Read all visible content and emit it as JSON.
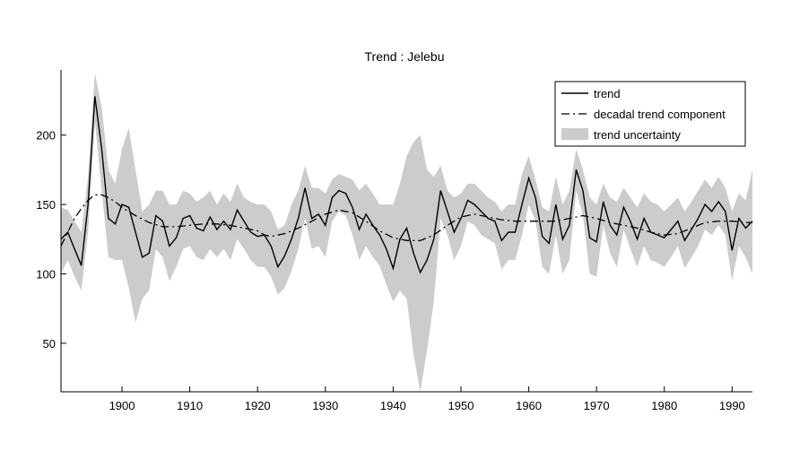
{
  "chart_data": {
    "type": "line",
    "title": "Trend : Jelebu",
    "xlabel": "",
    "ylabel": "",
    "xlim": [
      1891,
      1993
    ],
    "ylim": [
      15,
      247
    ],
    "x_ticks": [
      1900,
      1910,
      1920,
      1930,
      1940,
      1950,
      1960,
      1970,
      1980,
      1990
    ],
    "y_ticks": [
      50,
      100,
      150,
      200
    ],
    "x_tick_labels": [
      "1900",
      "1910",
      "1920",
      "1930",
      "1940",
      "1950",
      "1960",
      "1970",
      "1980",
      "1990"
    ],
    "y_tick_labels": [
      "50",
      "100",
      "150",
      "200"
    ],
    "grid": false,
    "legend_position": "top-right",
    "legend": [
      "trend",
      "decadal trend component",
      "trend uncertainty"
    ],
    "series": [
      {
        "name": "trend",
        "style": "solid",
        "color": "#000000",
        "x": [
          1891,
          1892,
          1893,
          1894,
          1895,
          1896,
          1897,
          1898,
          1899,
          1900,
          1901,
          1902,
          1903,
          1904,
          1905,
          1906,
          1907,
          1908,
          1909,
          1910,
          1911,
          1912,
          1913,
          1914,
          1915,
          1916,
          1917,
          1918,
          1919,
          1920,
          1921,
          1922,
          1923,
          1924,
          1925,
          1926,
          1927,
          1928,
          1929,
          1930,
          1931,
          1932,
          1933,
          1934,
          1935,
          1936,
          1937,
          1938,
          1939,
          1940,
          1941,
          1942,
          1943,
          1944,
          1945,
          1946,
          1947,
          1948,
          1949,
          1950,
          1951,
          1952,
          1953,
          1954,
          1955,
          1956,
          1957,
          1958,
          1959,
          1960,
          1961,
          1962,
          1963,
          1964,
          1965,
          1966,
          1967,
          1968,
          1969,
          1970,
          1971,
          1972,
          1973,
          1974,
          1975,
          1976,
          1977,
          1978,
          1979,
          1980,
          1981,
          1982,
          1983,
          1984,
          1985,
          1986,
          1987,
          1988,
          1989,
          1990,
          1991,
          1992,
          1993
        ],
        "values": [
          125,
          130,
          118,
          106,
          150,
          228,
          190,
          140,
          136,
          150,
          148,
          130,
          112,
          115,
          142,
          138,
          120,
          126,
          140,
          142,
          133,
          131,
          141,
          132,
          138,
          132,
          146,
          138,
          130,
          127,
          128,
          120,
          105,
          113,
          125,
          140,
          162,
          140,
          143,
          135,
          155,
          160,
          158,
          148,
          132,
          143,
          135,
          128,
          118,
          104,
          125,
          133,
          115,
          101,
          110,
          125,
          160,
          145,
          130,
          140,
          153,
          150,
          145,
          140,
          138,
          124,
          130,
          130,
          150,
          169,
          155,
          127,
          122,
          150,
          125,
          135,
          175,
          160,
          126,
          123,
          152,
          135,
          128,
          148,
          138,
          125,
          140,
          130,
          128,
          126,
          132,
          138,
          124,
          132,
          140,
          150,
          145,
          152,
          145,
          117,
          140,
          133,
          138
        ]
      },
      {
        "name": "decadal trend component",
        "style": "dashdot",
        "color": "#000000",
        "x": [
          1891,
          1892,
          1893,
          1894,
          1895,
          1896,
          1897,
          1898,
          1899,
          1900,
          1902,
          1904,
          1906,
          1908,
          1910,
          1912,
          1914,
          1916,
          1918,
          1920,
          1921,
          1922,
          1924,
          1926,
          1928,
          1930,
          1932,
          1934,
          1936,
          1938,
          1940,
          1942,
          1944,
          1946,
          1948,
          1950,
          1952,
          1954,
          1956,
          1958,
          1960,
          1962,
          1964,
          1966,
          1968,
          1970,
          1972,
          1974,
          1976,
          1978,
          1980,
          1982,
          1984,
          1986,
          1988,
          1990,
          1992,
          1993
        ],
        "values": [
          120,
          130,
          140,
          147,
          153,
          157,
          157,
          155,
          152,
          148,
          142,
          137,
          134,
          134,
          135,
          136,
          136,
          135,
          133,
          131,
          128,
          127,
          129,
          133,
          138,
          143,
          146,
          144,
          138,
          131,
          126,
          124,
          124,
          128,
          135,
          141,
          143,
          141,
          139,
          138,
          138,
          138,
          138,
          140,
          142,
          140,
          137,
          135,
          133,
          130,
          128,
          129,
          133,
          137,
          138,
          138,
          137,
          137
        ]
      }
    ],
    "uncertainty_band": {
      "name": "trend uncertainty",
      "color": "#cccccc",
      "x": [
        1891,
        1892,
        1893,
        1894,
        1895,
        1896,
        1897,
        1898,
        1899,
        1900,
        1901,
        1902,
        1903,
        1904,
        1905,
        1906,
        1907,
        1908,
        1909,
        1910,
        1911,
        1912,
        1913,
        1914,
        1915,
        1916,
        1917,
        1918,
        1919,
        1920,
        1921,
        1922,
        1923,
        1924,
        1925,
        1926,
        1927,
        1928,
        1929,
        1930,
        1931,
        1932,
        1933,
        1934,
        1935,
        1936,
        1937,
        1938,
        1939,
        1940,
        1941,
        1942,
        1943,
        1944,
        1945,
        1946,
        1947,
        1948,
        1949,
        1950,
        1951,
        1952,
        1953,
        1954,
        1955,
        1956,
        1957,
        1958,
        1959,
        1960,
        1961,
        1962,
        1963,
        1964,
        1965,
        1966,
        1967,
        1968,
        1969,
        1970,
        1971,
        1972,
        1973,
        1974,
        1975,
        1976,
        1977,
        1978,
        1979,
        1980,
        1981,
        1982,
        1983,
        1984,
        1985,
        1986,
        1987,
        1988,
        1989,
        1990,
        1991,
        1992,
        1993
      ],
      "upper": [
        148,
        146,
        138,
        130,
        170,
        245,
        220,
        175,
        165,
        190,
        205,
        175,
        145,
        150,
        160,
        160,
        150,
        150,
        160,
        158,
        152,
        155,
        160,
        150,
        158,
        152,
        165,
        155,
        152,
        150,
        150,
        145,
        132,
        135,
        150,
        160,
        178,
        162,
        162,
        158,
        168,
        172,
        170,
        168,
        160,
        165,
        158,
        150,
        150,
        150,
        165,
        185,
        195,
        200,
        175,
        170,
        178,
        160,
        155,
        158,
        165,
        165,
        160,
        155,
        152,
        145,
        150,
        150,
        172,
        185,
        168,
        148,
        145,
        170,
        150,
        160,
        190,
        175,
        155,
        150,
        165,
        155,
        152,
        162,
        155,
        148,
        158,
        152,
        150,
        145,
        150,
        155,
        145,
        152,
        160,
        168,
        162,
        170,
        162,
        145,
        158,
        153,
        175
      ],
      "lower": [
        100,
        110,
        98,
        88,
        130,
        210,
        160,
        112,
        110,
        110,
        90,
        65,
        82,
        88,
        118,
        112,
        95,
        105,
        118,
        120,
        112,
        110,
        118,
        112,
        118,
        110,
        125,
        118,
        110,
        105,
        105,
        98,
        85,
        90,
        102,
        118,
        140,
        118,
        120,
        112,
        138,
        145,
        142,
        128,
        110,
        120,
        112,
        106,
        92,
        80,
        88,
        82,
        42,
        15,
        45,
        80,
        140,
        128,
        110,
        120,
        138,
        135,
        128,
        125,
        122,
        103,
        110,
        110,
        128,
        150,
        138,
        105,
        100,
        128,
        100,
        110,
        160,
        142,
        100,
        98,
        135,
        115,
        105,
        132,
        118,
        105,
        120,
        110,
        108,
        105,
        112,
        120,
        104,
        112,
        120,
        132,
        128,
        135,
        128,
        95,
        120,
        112,
        100
      ]
    }
  }
}
